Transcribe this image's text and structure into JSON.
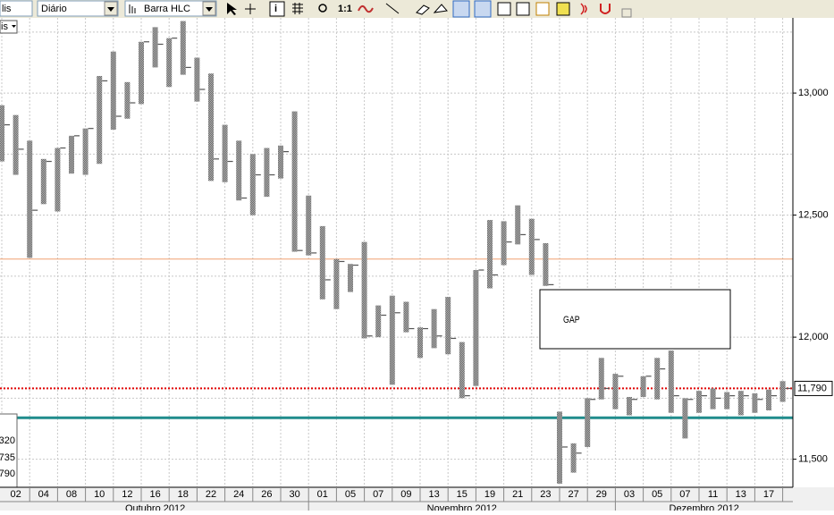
{
  "toolbar": {
    "symbol": "lis",
    "period": "Diário",
    "style": "Barra HLC",
    "zoom": "1:1"
  },
  "chart_menu": "is",
  "legend_box": [
    "320",
    "735",
    "790"
  ],
  "annotation": "GAP",
  "chart_data": {
    "type": "hlc",
    "categories": [
      null,
      "02",
      null,
      "04",
      null,
      "08",
      null,
      "10",
      null,
      "12",
      null,
      "16",
      null,
      "18",
      null,
      "22",
      null,
      "24",
      null,
      "26",
      null,
      "30",
      null,
      "01",
      null,
      "05",
      null,
      "07",
      null,
      "09",
      null,
      "13",
      null,
      "15",
      null,
      "19",
      null,
      "21",
      null,
      "23",
      null,
      "27",
      null,
      "29",
      null,
      "03",
      null,
      "05",
      null,
      "07",
      null,
      "11",
      null,
      "13",
      null,
      "17",
      null
    ],
    "months": [
      {
        "label": "Outubro 2012",
        "start": 0
      },
      {
        "label": "Novembro 2012",
        "start": 22
      },
      {
        "label": "Dezembro 2012",
        "start": 44
      }
    ],
    "high": [
      12950,
      12910,
      12805,
      12730,
      12775,
      12825,
      12855,
      13070,
      13170,
      13045,
      13210,
      13270,
      13225,
      13295,
      13145,
      13080,
      12870,
      12805,
      12750,
      12775,
      12785,
      12925,
      12580,
      12455,
      12320,
      12300,
      12390,
      12130,
      12170,
      12145,
      12040,
      12115,
      12165,
      11980,
      12275,
      12480,
      12475,
      12540,
      12485,
      12385,
      11695,
      11565,
      11750,
      11915,
      11850,
      11755,
      11840,
      11915,
      11945,
      11750,
      11780,
      11790,
      11775,
      11780,
      11770,
      11785,
      11820
    ],
    "low": [
      12720,
      12665,
      12325,
      12545,
      12515,
      12670,
      12665,
      12710,
      12850,
      12895,
      12955,
      13105,
      13025,
      13075,
      12965,
      12640,
      12635,
      12560,
      12500,
      12575,
      12650,
      12350,
      12335,
      12155,
      12115,
      12185,
      11995,
      12000,
      11805,
      12020,
      11915,
      11955,
      11930,
      11750,
      11800,
      12200,
      12295,
      12380,
      12255,
      12210,
      11400,
      11445,
      11550,
      11745,
      11705,
      11680,
      11755,
      11745,
      11690,
      11585,
      11690,
      11705,
      11705,
      11680,
      11690,
      11700,
      11735
    ],
    "close": [
      12870,
      12770,
      12520,
      12720,
      12775,
      12825,
      12855,
      13050,
      12905,
      12960,
      13210,
      13200,
      13225,
      13105,
      13015,
      12730,
      12720,
      12570,
      12665,
      12665,
      12760,
      12355,
      12345,
      12235,
      12310,
      12295,
      12005,
      12090,
      12100,
      12035,
      12035,
      12005,
      11995,
      11760,
      12275,
      12255,
      12390,
      12420,
      12400,
      12215,
      11550,
      11525,
      11745,
      11790,
      11840,
      11745,
      11840,
      11870,
      11760,
      11745,
      11760,
      11750,
      11760,
      11760,
      11745,
      11760,
      11790
    ],
    "color": "#8c8c8c",
    "ylim": [
      11385,
      13308
    ],
    "yticks": [
      {
        "value": 11500,
        "label": "11,500"
      },
      {
        "value": 12000,
        "label": "12,000"
      },
      {
        "value": 12500,
        "label": "12,500"
      },
      {
        "value": 13000,
        "label": "13,000"
      }
    ],
    "minor_grid": [
      11750,
      12250,
      12750,
      13250
    ],
    "grid": true,
    "levels": [
      {
        "value": 12320,
        "color": "#f0a070",
        "width": 1,
        "dash": "none"
      },
      {
        "value": 11790,
        "color": "#e00000",
        "width": 2,
        "dash": "2 2"
      },
      {
        "value": 11670,
        "color": "#208c8c",
        "width": 3,
        "dash": "none"
      }
    ],
    "last_price": {
      "value": 11790,
      "label": "11,790"
    }
  }
}
